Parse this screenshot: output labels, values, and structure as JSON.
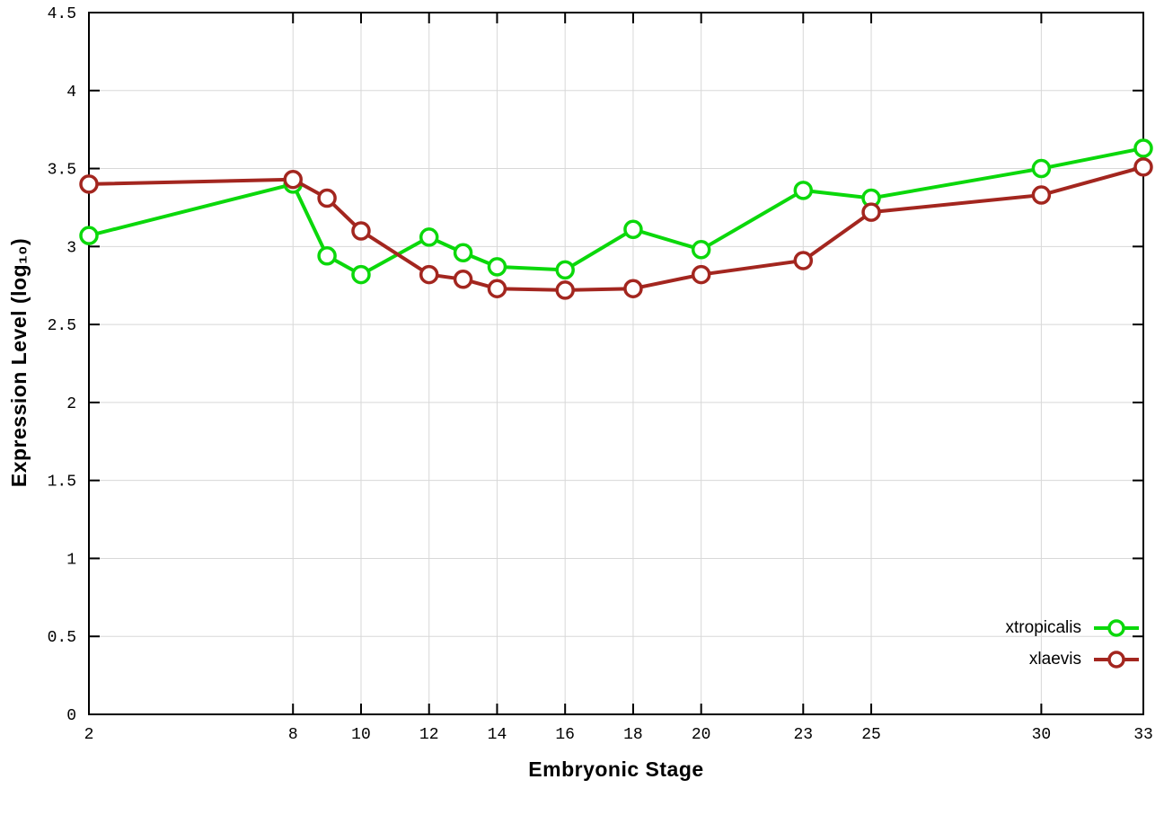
{
  "figure": {
    "background": "#ffffff",
    "xlabel": "Embryonic Stage",
    "ylabel": "Expression Level (log₁₀)"
  },
  "chart_data": {
    "type": "line",
    "title": "",
    "xlabel": "Embryonic Stage",
    "ylabel": "Expression Level (log10)",
    "xlim": [
      2,
      33
    ],
    "ylim": [
      0,
      4.5
    ],
    "grid": true,
    "grid_color": "#d8d8d8",
    "border_color": "#000000",
    "legend_position": "bottom-right",
    "x": [
      2,
      8,
      9,
      10,
      12,
      13,
      14,
      16,
      18,
      20,
      23,
      25,
      30,
      33
    ],
    "series": [
      {
        "name": "xtropicalis",
        "color": "#0bd80b",
        "marker": "open-circle",
        "values": [
          3.07,
          3.4,
          2.94,
          2.82,
          3.06,
          2.96,
          2.87,
          2.85,
          3.11,
          2.98,
          3.36,
          3.31,
          3.5,
          3.63
        ]
      },
      {
        "name": "xlaevis",
        "color": "#a3261f",
        "marker": "open-circle",
        "values": [
          3.4,
          3.43,
          3.31,
          3.1,
          2.82,
          2.79,
          2.73,
          2.72,
          2.73,
          2.82,
          2.91,
          3.22,
          3.33,
          3.51
        ]
      }
    ],
    "xticks": [
      2,
      8,
      10,
      12,
      14,
      16,
      18,
      20,
      23,
      25,
      30,
      33
    ],
    "yticks": [
      [
        0,
        "0"
      ],
      [
        0.5,
        "0.5"
      ],
      [
        1,
        "1"
      ],
      [
        1.5,
        "1.5"
      ],
      [
        2,
        "2"
      ],
      [
        2.5,
        "2.5"
      ],
      [
        3,
        "3"
      ],
      [
        3.5,
        "3.5"
      ],
      [
        4,
        "4"
      ],
      [
        4.5,
        "4.5"
      ]
    ]
  }
}
